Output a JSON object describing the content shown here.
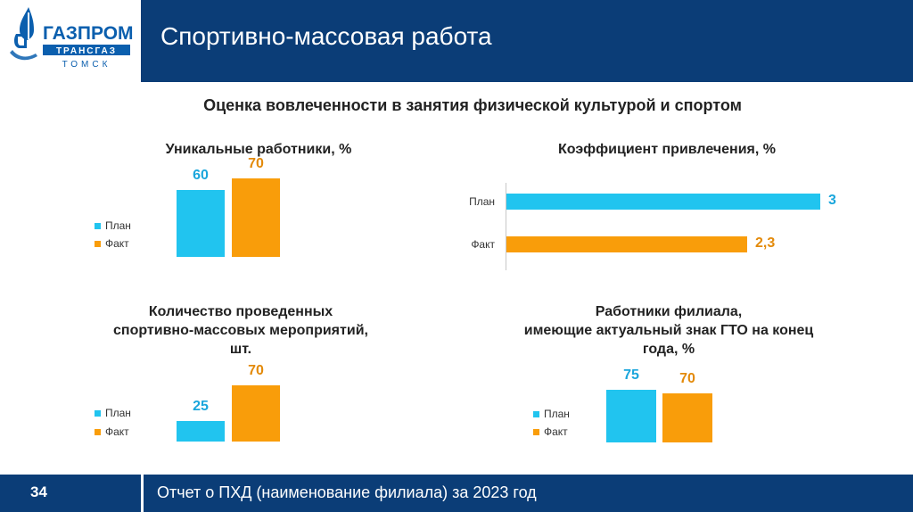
{
  "header": {
    "title": "Спортивно-массовая работа"
  },
  "logo": {
    "line1": "ГАЗПРОМ",
    "line2": "ТРАНСГАЗ",
    "line3": "ТОМСК"
  },
  "main_title": "Оценка вовлеченности в занятия физической культурой и спортом",
  "footer": {
    "page_number": "34",
    "text": "Отчет о ПХД (наименование филиала) за 2023 год"
  },
  "colors": {
    "plan": "#21c4ef",
    "fact": "#f99d0a",
    "navy": "#0b3d77",
    "plan_text": "#1aa6dc",
    "fact_text": "#e38a0a"
  },
  "chart_data": [
    {
      "type": "bar",
      "title": "Уникальные работники, %",
      "series": [
        {
          "name": "План",
          "values": [
            60
          ]
        },
        {
          "name": "Факт",
          "values": [
            70
          ]
        }
      ],
      "value_labels": [
        "60",
        "70"
      ],
      "ylim": [
        0,
        100
      ]
    },
    {
      "type": "bar",
      "orientation": "horizontal",
      "title": "Коэффициент привлечения, %",
      "categories": [
        "План",
        "Факт"
      ],
      "values": [
        3,
        2.3
      ],
      "value_labels": [
        "3",
        "2,3"
      ],
      "xlim": [
        0,
        3
      ]
    },
    {
      "type": "bar",
      "title_lines": [
        "Количество проведенных",
        "спортивно-массовых мероприятий,",
        "шт."
      ],
      "series": [
        {
          "name": "План",
          "values": [
            25
          ]
        },
        {
          "name": "Факт",
          "values": [
            70
          ]
        }
      ],
      "value_labels": [
        "25",
        "70"
      ],
      "ylim": [
        0,
        70
      ]
    },
    {
      "type": "bar",
      "title_lines": [
        "Работники филиала,",
        "имеющие актуальный знак ГТО на конец",
        "года, %"
      ],
      "series": [
        {
          "name": "План",
          "values": [
            75
          ]
        },
        {
          "name": "Факт",
          "values": [
            70
          ]
        }
      ],
      "value_labels": [
        "75",
        "70"
      ],
      "ylim": [
        0,
        75
      ]
    }
  ]
}
